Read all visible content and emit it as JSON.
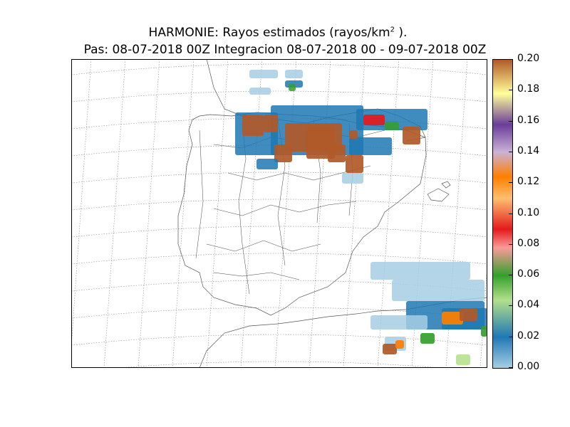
{
  "chart_data": {
    "type": "heatmap",
    "title": "HARMONIE: Rayos estimados  (rayos/km",
    "title_sup": "2",
    "title_end": " ).",
    "subtitle": "Pas: 08-07-2018 00Z Integracion 08-07-2018 00 - 09-07-2018 00Z",
    "colorbar": {
      "range": [
        0,
        0.2
      ],
      "ticks": [
        "0.00",
        "0.02",
        "0.04",
        "0.06",
        "0.08",
        "0.10",
        "0.12",
        "0.14",
        "0.16",
        "0.18",
        "0.20"
      ]
    },
    "colormap": [
      "#a6cee3",
      "#1f78b4",
      "#b2df8a",
      "#33a02c",
      "#fb9a99",
      "#e31a1c",
      "#fdbf6f",
      "#ff7f00",
      "#cab2d6",
      "#6a3d9a",
      "#ffff99",
      "#b15928"
    ]
  }
}
